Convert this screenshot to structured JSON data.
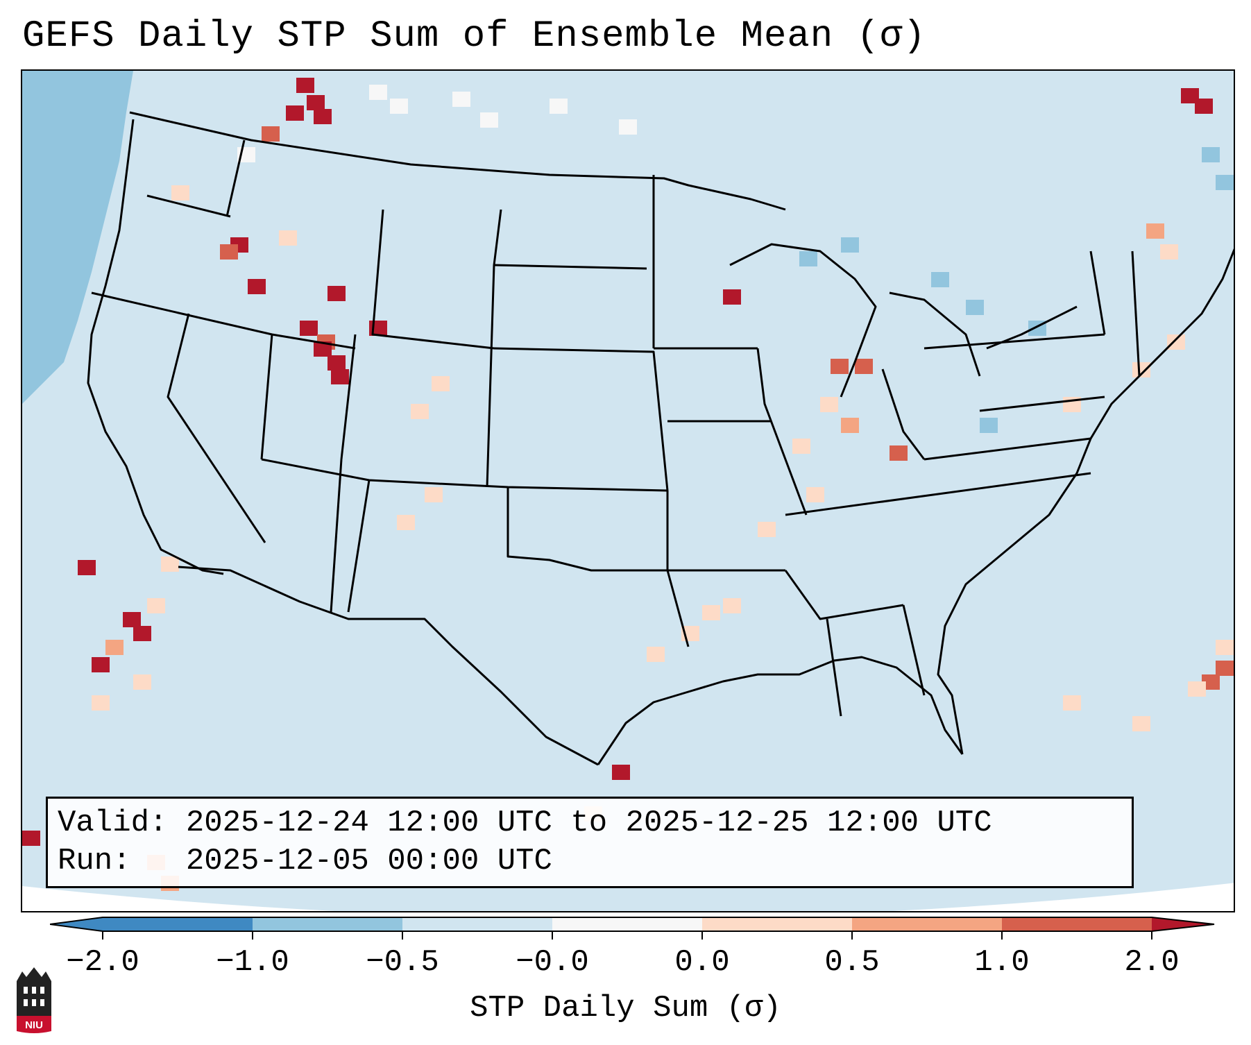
{
  "figure": {
    "title": "GEFS Daily STP Sum of Ensemble Mean (σ)",
    "valid_line": "Valid: 2025-12-24 12:00 UTC to 2025-12-25 12:00 UTC",
    "run_line": "Run:   2025-12-05 00:00 UTC"
  },
  "colorbar": {
    "label": "STP Daily Sum (σ)",
    "ticks": [
      "−2.0",
      "−1.0",
      "−0.5",
      "−0.0",
      "0.0",
      "0.5",
      "1.0",
      "2.0"
    ],
    "colors": [
      "#3f89c2",
      "#92c5de",
      "#d1e5f0",
      "#f7f7f7",
      "#fddbc7",
      "#f4a582",
      "#d6604d",
      "#b2182b"
    ],
    "extend": "both"
  },
  "map": {
    "region": "Contiguous United States",
    "projection": "Lambert Conformal",
    "background_color": "#d1e5f0"
  },
  "logo": {
    "text": "NIU"
  }
}
